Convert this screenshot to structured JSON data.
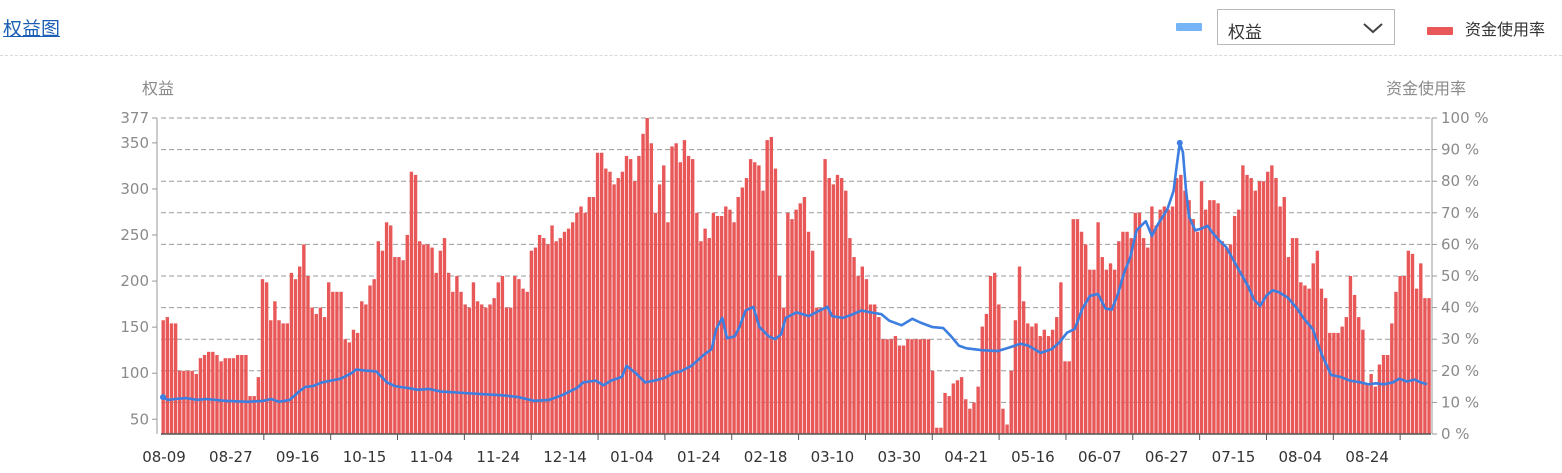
{
  "header": {
    "title": "权益图",
    "legend_line_label": "权益",
    "select_value": "权益",
    "legend_bar_label": "资金使用率"
  },
  "colors": {
    "bar": "#e85858",
    "line": "#3c7fe0",
    "legend_line": "#75b4f5",
    "grid": "#9a9a9a"
  },
  "chart_data": {
    "type": "bar+line",
    "y_left_label": "权益",
    "y_right_label": "资金使用率",
    "y_left_ticks": [
      "377",
      "350",
      "300",
      "250",
      "200",
      "150",
      "100",
      "50"
    ],
    "y_left_tick_values": [
      377,
      350,
      300,
      250,
      200,
      150,
      100,
      50
    ],
    "y_left_range": [
      34,
      377
    ],
    "y_right_ticks": [
      "100 %",
      "90 %",
      "80 %",
      "70 %",
      "60 %",
      "50 %",
      "40 %",
      "30 %",
      "20 %",
      "10 %",
      "0 %"
    ],
    "y_right_range": [
      0,
      100
    ],
    "grid": "dashed",
    "x_labels": [
      "08-09",
      "08-27",
      "09-16",
      "10-15",
      "11-04",
      "11-24",
      "12-14",
      "01-04",
      "01-24",
      "02-18",
      "03-10",
      "03-30",
      "04-21",
      "05-16",
      "06-07",
      "06-27",
      "07-15",
      "08-04",
      "08-24"
    ],
    "series": [
      {
        "name": "资金使用率",
        "kind": "bar",
        "unit": "%",
        "values": [
          36,
          37,
          35,
          35,
          20,
          20,
          20,
          20,
          19,
          24,
          25,
          26,
          26,
          25,
          23,
          24,
          24,
          24,
          25,
          25,
          25,
          12,
          12,
          18,
          49,
          48,
          36,
          42,
          36,
          35,
          35,
          51,
          49,
          53,
          60,
          50,
          40,
          38,
          40,
          37,
          48,
          45,
          45,
          45,
          30,
          29,
          33,
          32,
          42,
          41,
          47,
          49,
          61,
          58,
          67,
          66,
          56,
          56,
          55,
          63,
          83,
          82,
          61,
          60,
          60,
          59,
          51,
          58,
          62,
          51,
          45,
          50,
          45,
          41,
          40,
          48,
          42,
          41,
          40,
          41,
          43,
          48,
          50,
          40,
          40,
          50,
          49,
          46,
          45,
          58,
          59,
          63,
          62,
          60,
          66,
          61,
          62,
          64,
          65,
          67,
          70,
          72,
          70,
          75,
          75,
          89,
          89,
          84,
          83,
          79,
          81,
          83,
          88,
          87,
          80,
          88,
          95,
          100,
          92,
          70,
          79,
          85,
          67,
          91,
          92,
          86,
          93,
          88,
          87,
          70,
          61,
          65,
          62,
          70,
          69,
          69,
          72,
          71,
          67,
          75,
          78,
          81,
          87,
          86,
          85,
          77,
          93,
          94,
          84,
          50,
          40,
          70,
          68,
          71,
          73,
          75,
          64,
          58,
          40,
          40,
          87,
          81,
          79,
          82,
          81,
          77,
          62,
          56,
          50,
          53,
          49,
          41,
          41,
          37,
          30,
          30,
          30,
          31,
          28,
          28,
          30,
          30,
          30,
          30,
          30,
          30,
          20,
          2,
          2,
          13,
          12,
          16,
          17,
          18,
          11,
          8,
          10,
          15,
          34,
          38,
          50,
          51,
          41,
          8,
          3,
          20,
          36,
          53,
          42,
          35,
          34,
          35,
          31,
          33,
          31,
          33,
          37,
          48,
          23,
          23,
          68,
          68,
          64,
          60,
          52,
          52,
          67,
          56,
          52,
          54,
          52,
          61,
          64,
          64,
          62,
          70,
          70,
          62,
          59,
          72,
          66,
          71,
          72,
          71,
          72,
          81,
          82,
          77,
          74,
          68,
          64,
          80,
          71,
          74,
          74,
          73,
          61,
          59,
          60,
          69,
          71,
          85,
          82,
          81,
          77,
          80,
          80,
          83,
          85,
          81,
          72,
          75,
          56,
          62,
          62,
          48,
          47,
          46,
          54,
          58,
          46,
          43,
          32,
          32,
          32,
          34,
          37,
          50,
          44,
          37,
          33,
          16,
          19,
          15,
          22,
          25,
          25,
          35,
          45,
          50,
          50,
          58,
          57,
          46,
          54,
          43,
          43
        ]
      },
      {
        "name": "权益",
        "kind": "line",
        "unit": "",
        "points": [
          [
            0,
            74
          ],
          [
            3,
            71
          ],
          [
            8,
            72
          ],
          [
            15,
            73
          ],
          [
            22,
            71
          ],
          [
            28,
            72
          ],
          [
            40,
            70
          ],
          [
            55,
            69
          ],
          [
            65,
            70
          ],
          [
            70,
            72
          ],
          [
            75,
            69
          ],
          [
            82,
            71
          ],
          [
            88,
            80
          ],
          [
            92,
            85
          ],
          [
            97,
            86
          ],
          [
            103,
            90
          ],
          [
            115,
            94
          ],
          [
            122,
            100
          ],
          [
            125,
            104
          ],
          [
            130,
            103
          ],
          [
            138,
            102
          ],
          [
            145,
            90
          ],
          [
            150,
            86
          ],
          [
            158,
            84
          ],
          [
            165,
            82
          ],
          [
            172,
            83
          ],
          [
            180,
            80
          ],
          [
            190,
            79
          ],
          [
            200,
            78
          ],
          [
            210,
            77
          ],
          [
            220,
            76
          ],
          [
            230,
            74
          ],
          [
            240,
            70
          ],
          [
            250,
            71
          ],
          [
            258,
            76
          ],
          [
            268,
            84
          ],
          [
            272,
            90
          ],
          [
            280,
            92
          ],
          [
            285,
            87
          ],
          [
            290,
            92
          ],
          [
            297,
            96
          ],
          [
            300,
            108
          ],
          [
            306,
            100
          ],
          [
            312,
            90
          ],
          [
            318,
            92
          ],
          [
            325,
            95
          ],
          [
            330,
            100
          ],
          [
            335,
            102
          ],
          [
            342,
            108
          ],
          [
            350,
            120
          ],
          [
            355,
            126
          ],
          [
            358,
            148
          ],
          [
            362,
            160
          ],
          [
            365,
            138
          ],
          [
            370,
            140
          ],
          [
            373,
            150
          ],
          [
            377,
            168
          ],
          [
            382,
            172
          ],
          [
            386,
            150
          ],
          [
            392,
            140
          ],
          [
            396,
            137
          ],
          [
            400,
            142
          ],
          [
            403,
            160
          ],
          [
            410,
            166
          ],
          [
            418,
            162
          ],
          [
            425,
            168
          ],
          [
            430,
            172
          ],
          [
            433,
            162
          ],
          [
            440,
            160
          ],
          [
            445,
            163
          ],
          [
            452,
            168
          ],
          [
            458,
            166
          ],
          [
            465,
            164
          ],
          [
            470,
            157
          ],
          [
            478,
            152
          ],
          [
            485,
            159
          ],
          [
            490,
            155
          ],
          [
            498,
            150
          ],
          [
            505,
            149
          ],
          [
            510,
            140
          ],
          [
            515,
            130
          ],
          [
            520,
            127
          ],
          [
            530,
            125
          ],
          [
            540,
            124
          ],
          [
            548,
            128
          ],
          [
            555,
            132
          ],
          [
            560,
            130
          ],
          [
            568,
            122
          ],
          [
            575,
            126
          ],
          [
            580,
            133
          ],
          [
            585,
            144
          ],
          [
            590,
            148
          ],
          [
            595,
            170
          ],
          [
            600,
            184
          ],
          [
            605,
            186
          ],
          [
            610,
            170
          ],
          [
            614,
            169
          ],
          [
            618,
            186
          ],
          [
            622,
            209
          ],
          [
            626,
            226
          ],
          [
            630,
            255
          ],
          [
            636,
            265
          ],
          [
            640,
            249
          ],
          [
            644,
            262
          ],
          [
            650,
            278
          ],
          [
            654,
            298
          ],
          [
            656,
            325
          ],
          [
            658,
            350
          ],
          [
            660,
            340
          ],
          [
            662,
            300
          ],
          [
            664,
            270
          ],
          [
            668,
            255
          ],
          [
            672,
            257
          ],
          [
            676,
            260
          ],
          [
            679,
            253
          ],
          [
            683,
            245
          ],
          [
            688,
            237
          ],
          [
            692,
            225
          ],
          [
            697,
            210
          ],
          [
            702,
            195
          ],
          [
            706,
            180
          ],
          [
            710,
            173
          ],
          [
            714,
            184
          ],
          [
            718,
            190
          ],
          [
            722,
            188
          ],
          [
            728,
            182
          ],
          [
            734,
            170
          ],
          [
            738,
            160
          ],
          [
            744,
            148
          ],
          [
            750,
            120
          ],
          [
            756,
            98
          ],
          [
            762,
            96
          ],
          [
            768,
            92
          ],
          [
            775,
            90
          ],
          [
            780,
            88
          ],
          [
            785,
            89
          ],
          [
            790,
            88
          ],
          [
            796,
            90
          ],
          [
            800,
            94
          ],
          [
            805,
            91
          ],
          [
            810,
            93
          ],
          [
            814,
            90
          ],
          [
            818,
            88
          ]
        ]
      }
    ]
  }
}
